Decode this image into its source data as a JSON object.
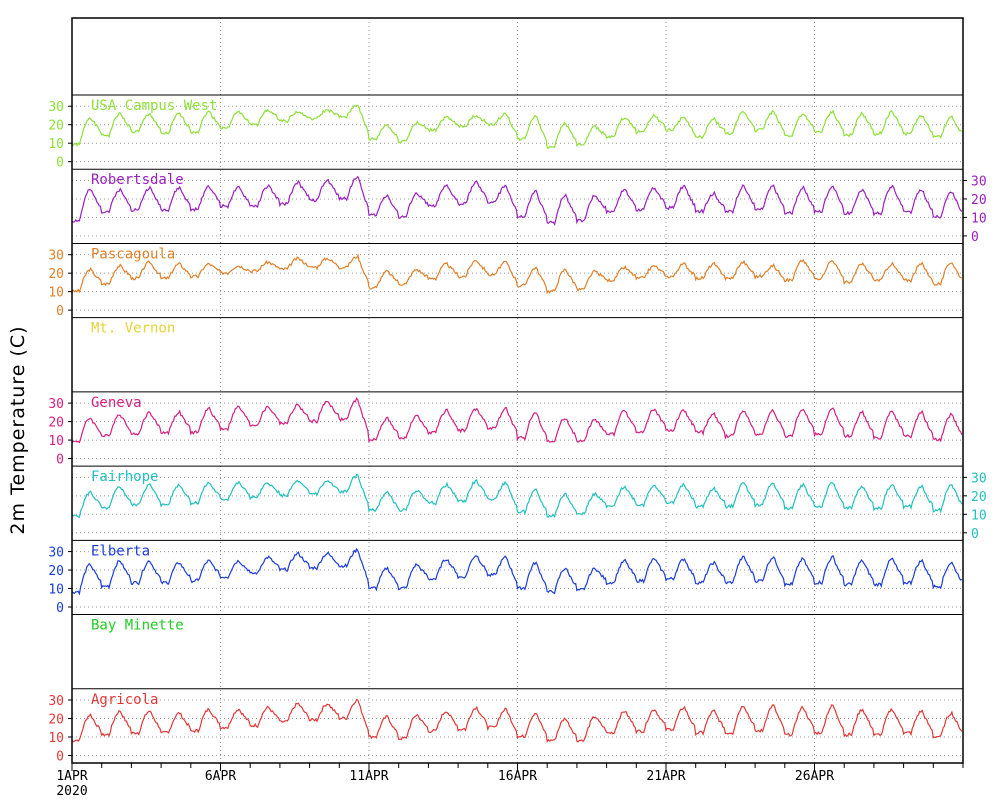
{
  "chart_data": {
    "type": "line",
    "ylabel": "2m Temperature (C)",
    "x_axis": {
      "start": "2020-04-01",
      "end": "2020-04-30",
      "ticks": [
        {
          "date": "2020-04-01",
          "label": "1APR",
          "sublabel": "2020"
        },
        {
          "date": "2020-04-06",
          "label": "6APR"
        },
        {
          "date": "2020-04-11",
          "label": "11APR"
        },
        {
          "date": "2020-04-16",
          "label": "16APR"
        },
        {
          "date": "2020-04-21",
          "label": "21APR"
        },
        {
          "date": "2020-04-26",
          "label": "26APR"
        }
      ]
    },
    "y_ticks": [
      0,
      10,
      20,
      30
    ],
    "ylim": [
      -3,
      35
    ],
    "grid": true,
    "panels": [
      {
        "name": "USA Campus West",
        "color": "#8ee03a",
        "axis_side": "left",
        "has_data": true,
        "seed": 1,
        "daily_max": [
          24,
          26,
          26,
          26,
          27,
          27,
          28,
          27,
          28,
          31,
          20,
          21,
          24,
          25,
          26,
          25,
          21,
          19,
          24,
          25,
          24,
          23,
          27,
          27,
          26,
          27,
          26,
          27,
          25,
          24
        ],
        "daily_min": [
          9,
          14,
          16,
          15,
          16,
          18,
          20,
          22,
          23,
          24,
          12,
          11,
          17,
          19,
          20,
          12,
          8,
          9,
          13,
          16,
          17,
          13,
          15,
          17,
          14,
          16,
          14,
          15,
          15,
          13
        ]
      },
      {
        "name": "Robertsdale",
        "color": "#9a1fbf",
        "axis_side": "right",
        "has_data": true,
        "seed": 2,
        "daily_max": [
          25,
          25,
          26,
          26,
          27,
          26,
          27,
          29,
          30,
          32,
          22,
          23,
          27,
          29,
          27,
          24,
          22,
          22,
          25,
          26,
          27,
          23,
          27,
          27,
          26,
          27,
          25,
          27,
          25,
          24
        ],
        "daily_min": [
          8,
          13,
          14,
          14,
          14,
          16,
          16,
          17,
          19,
          20,
          11,
          10,
          16,
          17,
          18,
          10,
          7,
          8,
          13,
          14,
          15,
          13,
          13,
          14,
          12,
          13,
          12,
          12,
          13,
          10
        ]
      },
      {
        "name": "Pascagoula",
        "color": "#e0802a",
        "axis_side": "left",
        "has_data": true,
        "seed": 3,
        "daily_max": [
          22,
          24,
          26,
          25,
          25,
          24,
          26,
          28,
          28,
          29,
          21,
          22,
          25,
          27,
          26,
          23,
          22,
          21,
          23,
          24,
          25,
          25,
          26,
          24,
          27,
          27,
          25,
          25,
          25,
          26
        ],
        "daily_min": [
          10,
          14,
          17,
          17,
          18,
          20,
          21,
          22,
          23,
          23,
          12,
          14,
          17,
          18,
          19,
          13,
          10,
          11,
          16,
          17,
          18,
          17,
          17,
          18,
          16,
          17,
          15,
          16,
          16,
          14
        ]
      },
      {
        "name": "Mt. Vernon",
        "color": "#e8d23a",
        "axis_side": "right",
        "has_data": false
      },
      {
        "name": "Geneva",
        "color": "#d42080",
        "axis_side": "left",
        "has_data": true,
        "seed": 4,
        "daily_max": [
          22,
          24,
          25,
          25,
          27,
          28,
          28,
          29,
          31,
          32,
          22,
          23,
          26,
          27,
          27,
          25,
          22,
          21,
          26,
          27,
          26,
          24,
          26,
          26,
          27,
          27,
          25,
          26,
          25,
          24
        ],
        "daily_min": [
          9,
          12,
          13,
          14,
          14,
          16,
          18,
          19,
          20,
          21,
          10,
          11,
          14,
          15,
          16,
          11,
          9,
          9,
          13,
          14,
          15,
          14,
          12,
          13,
          12,
          13,
          12,
          11,
          12,
          10
        ]
      },
      {
        "name": "Fairhope",
        "color": "#22c0c0",
        "axis_side": "right",
        "has_data": true,
        "seed": 5,
        "daily_max": [
          22,
          25,
          26,
          26,
          27,
          27,
          27,
          28,
          28,
          31,
          22,
          23,
          26,
          28,
          27,
          23,
          21,
          21,
          25,
          26,
          26,
          24,
          27,
          27,
          26,
          27,
          25,
          26,
          25,
          26
        ],
        "daily_min": [
          9,
          13,
          15,
          15,
          16,
          18,
          19,
          20,
          21,
          22,
          12,
          12,
          16,
          17,
          18,
          11,
          9,
          10,
          14,
          15,
          16,
          14,
          14,
          15,
          13,
          14,
          13,
          13,
          14,
          12
        ]
      },
      {
        "name": "Elberta",
        "color": "#1a3cd8",
        "axis_side": "left",
        "has_data": true,
        "seed": 6,
        "daily_max": [
          23,
          25,
          25,
          24,
          25,
          25,
          27,
          29,
          29,
          31,
          21,
          23,
          26,
          28,
          27,
          24,
          21,
          21,
          25,
          26,
          26,
          24,
          27,
          27,
          26,
          27,
          25,
          26,
          25,
          24
        ],
        "daily_min": [
          8,
          11,
          13,
          13,
          14,
          16,
          18,
          20,
          21,
          22,
          10,
          10,
          15,
          16,
          17,
          10,
          8,
          9,
          13,
          14,
          15,
          13,
          13,
          14,
          12,
          13,
          12,
          12,
          13,
          11
        ]
      },
      {
        "name": "Bay Minette",
        "color": "#22cc22",
        "axis_side": "right",
        "has_data": false
      },
      {
        "name": "Agricola",
        "color": "#e03838",
        "axis_side": "left",
        "has_data": true,
        "seed": 7,
        "daily_max": [
          22,
          24,
          24,
          23,
          25,
          25,
          26,
          28,
          28,
          30,
          21,
          22,
          24,
          26,
          25,
          23,
          20,
          21,
          24,
          25,
          26,
          24,
          27,
          27,
          26,
          27,
          25,
          25,
          24,
          23
        ],
        "daily_min": [
          8,
          11,
          12,
          12,
          13,
          15,
          16,
          18,
          19,
          20,
          10,
          9,
          13,
          14,
          15,
          10,
          8,
          8,
          12,
          13,
          14,
          12,
          12,
          13,
          11,
          12,
          11,
          11,
          12,
          10
        ]
      }
    ]
  }
}
